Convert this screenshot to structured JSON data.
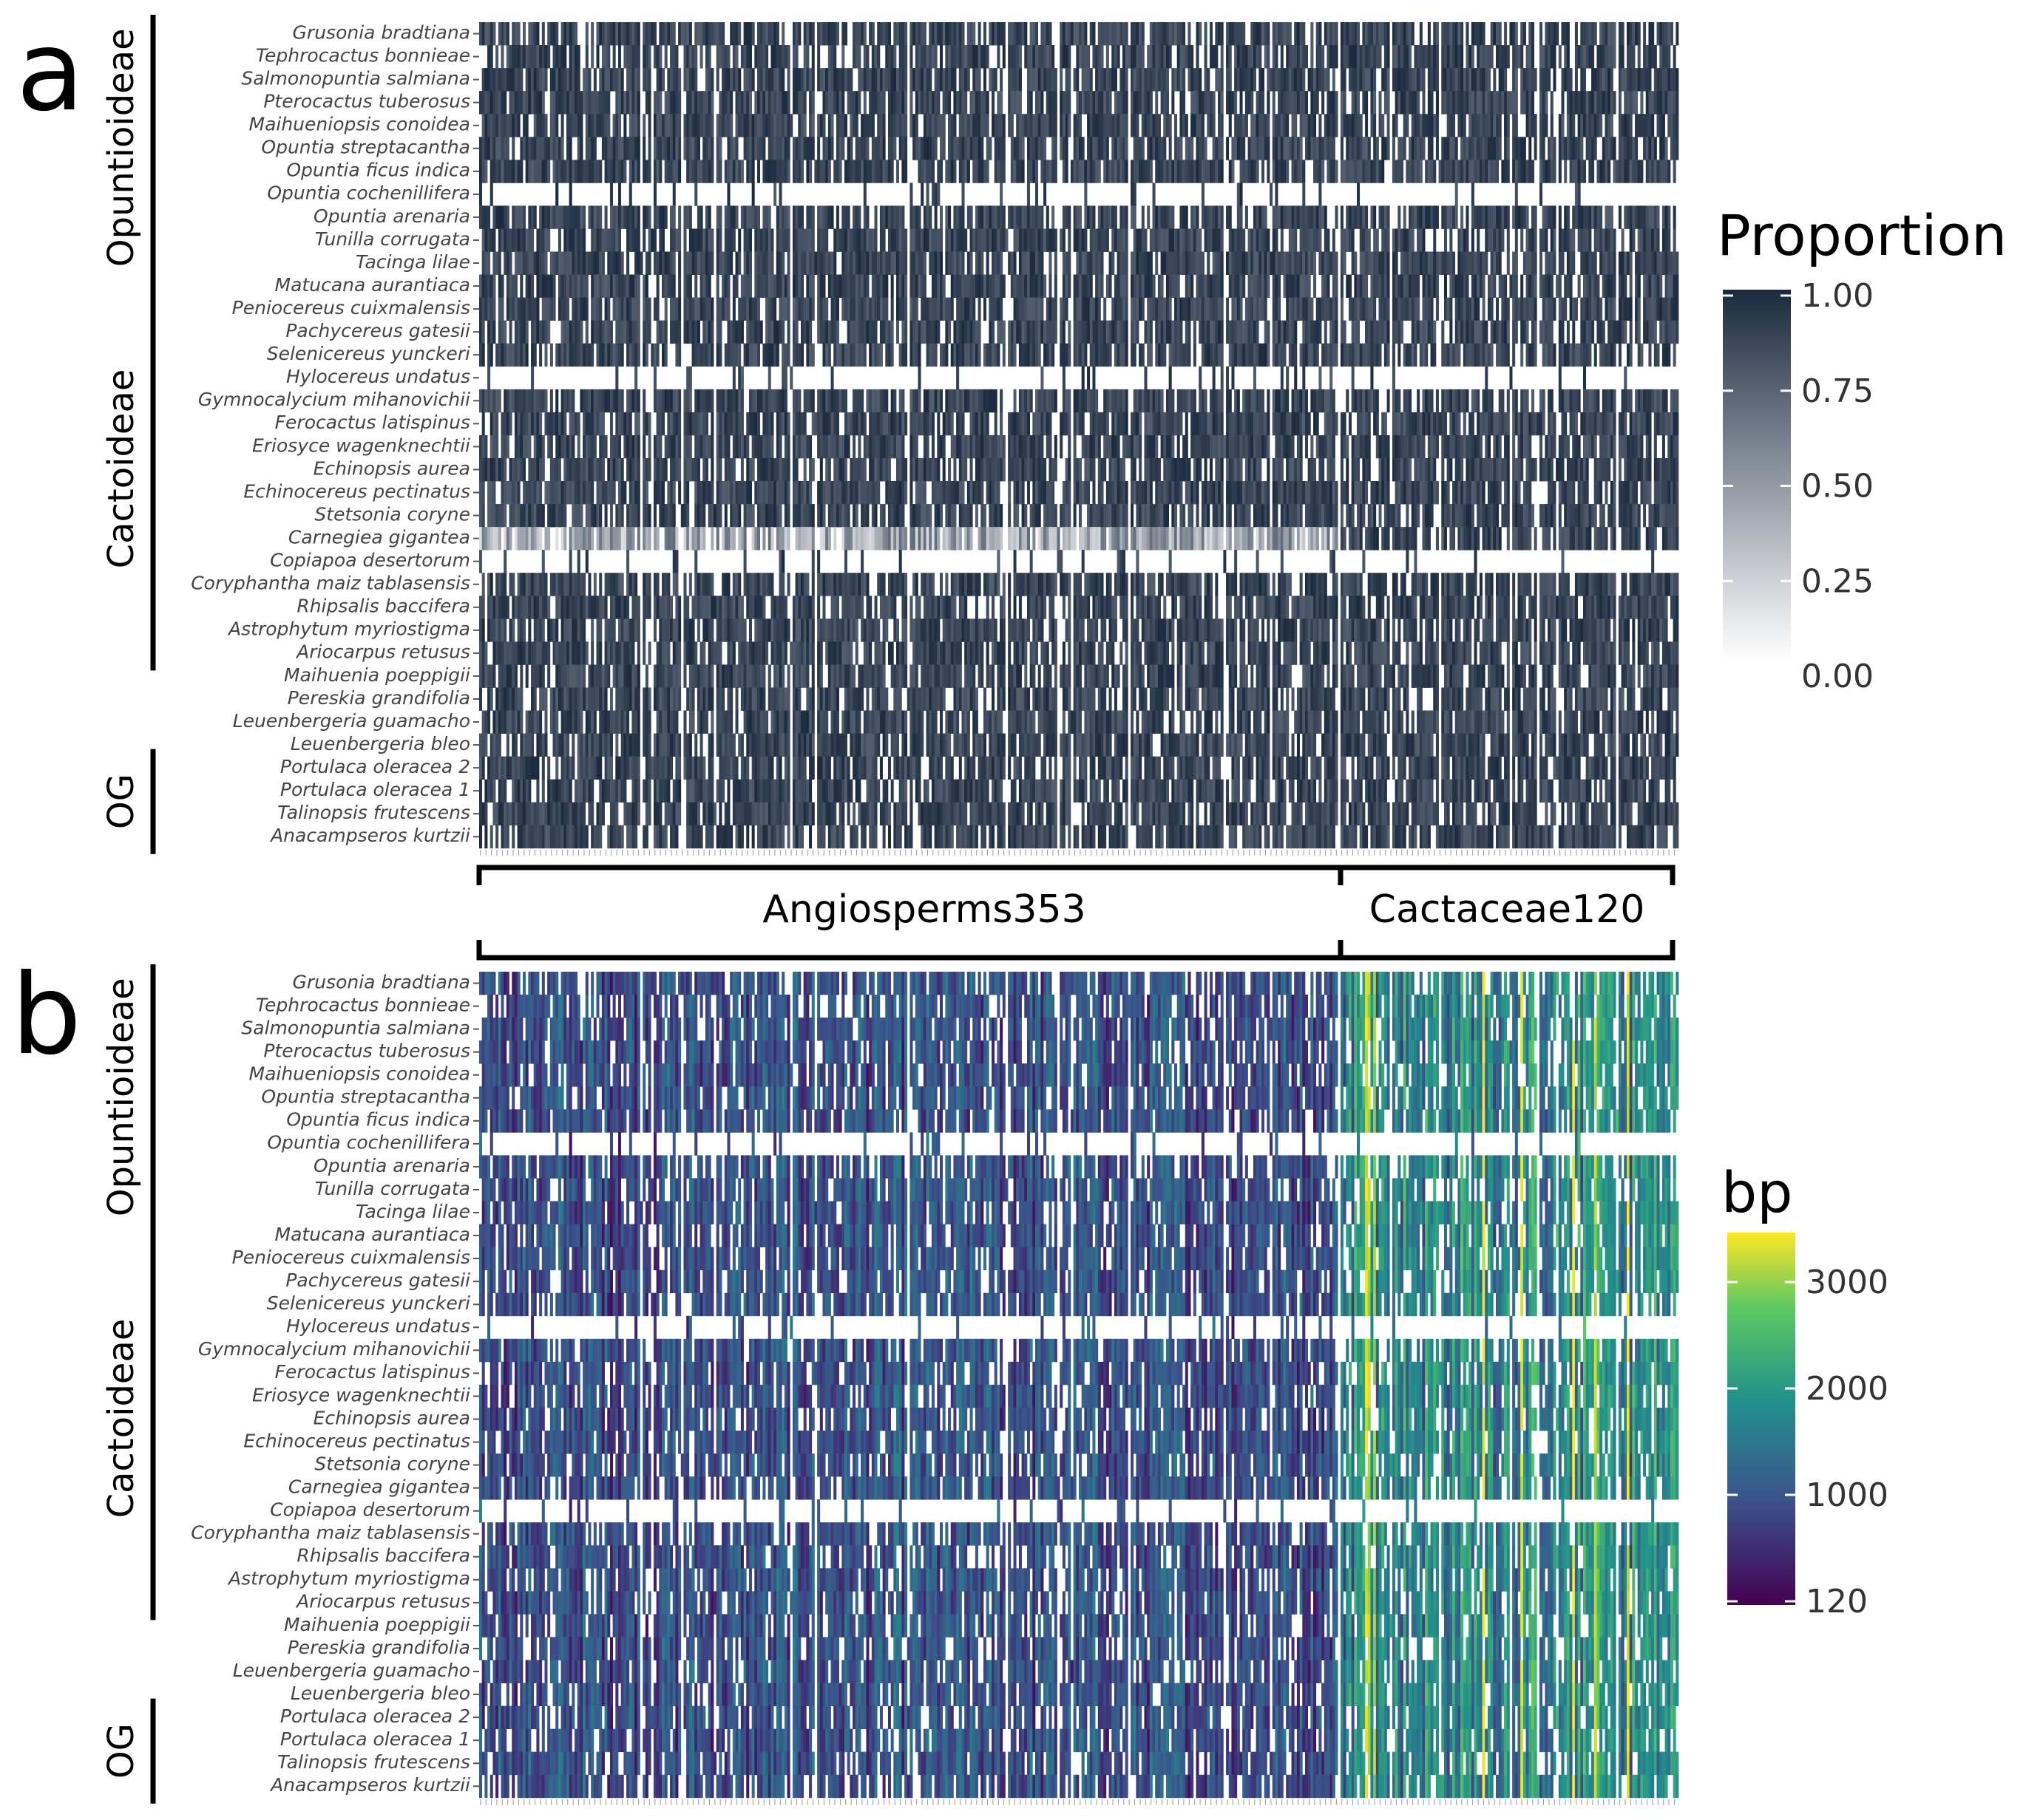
{
  "chart_data": [
    {
      "panel": "a",
      "type": "heatmap",
      "legend_title": "Proportion",
      "value_range": [
        0,
        1
      ],
      "legend_ticks": [
        "1.00",
        "0.75",
        "0.50",
        "0.25",
        "0.00"
      ],
      "colors": {
        "low": "#ffffff",
        "high": "#1b2a3f"
      },
      "mostly_missing_rows": [
        "Opuntia cochenillifera",
        "Hylocereus undatus",
        "Copiapoa desertorum"
      ],
      "faint_row": "Carnegiea gigantea"
    },
    {
      "panel": "b",
      "type": "heatmap",
      "legend_title": "bp",
      "value_range": [
        120,
        3500
      ],
      "legend_ticks": [
        "3000",
        "2000",
        "1000",
        "120"
      ],
      "colors": {
        "scale": [
          "#440154",
          "#3b528b",
          "#21918c",
          "#5ec962",
          "#fde725"
        ]
      },
      "mostly_missing_rows": [
        "Opuntia cochenillifera",
        "Hylocereus undatus",
        "Copiapoa desertorum"
      ]
    }
  ],
  "panels": {
    "a": {
      "letter": "a"
    },
    "b": {
      "letter": "b"
    }
  },
  "species": [
    "Grusonia bradtiana",
    "Tephrocactus bonnieae",
    "Salmonopuntia salmiana",
    "Pterocactus tuberosus",
    "Maihueniopsis conoidea",
    "Opuntia streptacantha",
    "Opuntia ficus indica",
    "Opuntia cochenillifera",
    "Opuntia arenaria",
    "Tunilla corrugata",
    "Tacinga lilae",
    "Matucana aurantiaca",
    "Peniocereus cuixmalensis",
    "Pachycereus gatesii",
    "Selenicereus yunckeri",
    "Hylocereus undatus",
    "Gymnocalycium mihanovichii",
    "Ferocactus latispinus",
    "Eriosyce wagenknechtii",
    "Echinopsis aurea",
    "Echinocereus pectinatus",
    "Stetsonia coryne",
    "Carnegiea gigantea",
    "Copiapoa desertorum",
    "Coryphantha maiz tablasensis",
    "Rhipsalis baccifera",
    "Astrophytum myriostigma",
    "Ariocarpus retusus",
    "Maihuenia poeppigii",
    "Pereskia grandifolia",
    "Leuenbergeria guamacho",
    "Leuenbergeria bleo",
    "Portulaca oleracea 2",
    "Portulaca oleracea 1",
    "Talinopsis frutescens",
    "Anacampseros kurtzii"
  ],
  "groups": [
    {
      "name": "Opuntioideae",
      "first": "Grusonia bradtiana",
      "last": "Tacinga lilae"
    },
    {
      "name": "Cactoideae",
      "first": "Matucana aurantiaca",
      "last": "Ariocarpus retusus"
    },
    {
      "name": "OG",
      "first": "Portulaca oleracea 2",
      "last": "Anacampseros kurtzii"
    }
  ],
  "gene_sets": [
    {
      "name": "Angiosperms353"
    },
    {
      "name": "Cactaceae120"
    }
  ]
}
